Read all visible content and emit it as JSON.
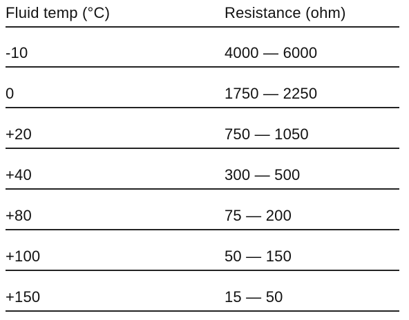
{
  "table": {
    "columns": [
      "Fluid temp (°C)",
      "Resistance (ohm)"
    ],
    "rows": [
      [
        "-10",
        "4000 — 6000"
      ],
      [
        "0",
        "1750 — 2250"
      ],
      [
        "+20",
        "750 — 1050"
      ],
      [
        "+40",
        "300 — 500"
      ],
      [
        "+80",
        "75 — 200"
      ],
      [
        "+100",
        "50 — 150"
      ],
      [
        "+150",
        "15 — 50"
      ]
    ]
  }
}
